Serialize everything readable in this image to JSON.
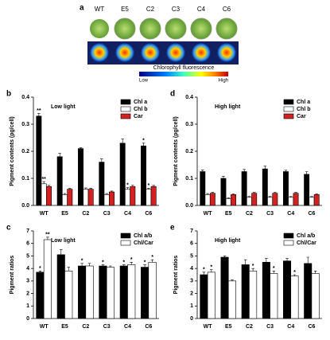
{
  "panel_a": {
    "panel_label": "a",
    "samples": [
      "WT",
      "E5",
      "C2",
      "C3",
      "C4",
      "C6"
    ],
    "colorbar_title": "Chlorophyll fluorescence",
    "colorbar_low": "Low",
    "colorbar_high": "High"
  },
  "chart_data": [
    {
      "type": "bar",
      "panel_label": "b",
      "title": "Low light",
      "y_label": "Pigment contents (pg/cell)",
      "legend": "upper right",
      "categories": [
        "WT",
        "E5",
        "C2",
        "C3",
        "C4",
        "C6"
      ],
      "series": [
        {
          "name": "Chl a",
          "color": "#000000",
          "values": [
            0.33,
            0.18,
            0.21,
            0.16,
            0.23,
            0.22
          ],
          "errors": [
            0.01,
            0.012,
            0.003,
            0.012,
            0.015,
            0.01
          ],
          "stars": [
            "**",
            null,
            null,
            null,
            null,
            "*"
          ]
        },
        {
          "name": "Chl b",
          "color": "#ffffff",
          "values": [
            0.08,
            0.04,
            0.06,
            0.04,
            0.06,
            0.06
          ],
          "errors": [
            0.008,
            0.004,
            0.005,
            0.004,
            0.006,
            0.004
          ],
          "stars": [
            "**",
            null,
            null,
            null,
            "*",
            "*"
          ]
        },
        {
          "name": "Car",
          "color": "#d42020",
          "values": [
            0.07,
            0.06,
            0.06,
            0.05,
            0.07,
            0.07
          ],
          "errors": [
            0.004,
            0.003,
            0.003,
            0.003,
            0.005,
            0.004
          ],
          "stars": [
            null,
            null,
            null,
            null,
            null,
            null
          ]
        }
      ],
      "ylim": [
        0,
        0.4
      ],
      "yticks": [
        {
          "value": 0,
          "label": "0.0"
        },
        0.1,
        0.2,
        0.3,
        0.4
      ]
    },
    {
      "type": "bar",
      "panel_label": "d",
      "title": "High light",
      "y_label": "Pigment contents (pg/cell)",
      "legend": "upper right",
      "categories": [
        "WT",
        "E5",
        "C2",
        "C3",
        "C4",
        "C6"
      ],
      "series": [
        {
          "name": "Chl a",
          "color": "#000000",
          "values": [
            0.125,
            0.1,
            0.125,
            0.135,
            0.125,
            0.115
          ],
          "errors": [
            0.006,
            0.008,
            0.008,
            0.01,
            0.005,
            0.01
          ],
          "stars": [
            null,
            null,
            null,
            null,
            null,
            null
          ]
        },
        {
          "name": "Chl b",
          "color": "#ffffff",
          "values": [
            0.04,
            0.025,
            0.03,
            0.03,
            0.03,
            0.03
          ],
          "errors": [
            0.004,
            0.003,
            0.003,
            0.003,
            0.003,
            0.003
          ],
          "stars": [
            null,
            null,
            null,
            null,
            null,
            null
          ]
        },
        {
          "name": "Car",
          "color": "#d42020",
          "values": [
            0.045,
            0.04,
            0.045,
            0.045,
            0.045,
            0.04
          ],
          "errors": [
            0.003,
            0.003,
            0.003,
            0.003,
            0.003,
            0.003
          ],
          "stars": [
            null,
            null,
            null,
            null,
            null,
            null
          ]
        }
      ],
      "ylim": [
        0,
        0.4
      ],
      "yticks": [
        {
          "value": 0,
          "label": "0.0"
        },
        0.1,
        0.2,
        0.3,
        0.4
      ]
    },
    {
      "type": "bar",
      "panel_label": "c",
      "title": "Low light",
      "y_label": "Pigment ratios",
      "legend": "upper right",
      "categories": [
        "WT",
        "E5",
        "C2",
        "C3",
        "C4",
        "C6"
      ],
      "series": [
        {
          "name": "Chl a/b",
          "color": "#000000",
          "values": [
            3.7,
            5.1,
            4.2,
            4.2,
            4.2,
            4.1
          ],
          "errors": [
            0.1,
            0.4,
            0.2,
            0.1,
            0.1,
            0.2
          ],
          "stars": [
            "*",
            null,
            "*",
            "*",
            "*",
            "*"
          ]
        },
        {
          "name": "Chl/Car",
          "color": "#ffffff",
          "values": [
            6.3,
            3.8,
            4.2,
            4.1,
            4.3,
            4.5
          ],
          "errors": [
            0.2,
            0.3,
            0.2,
            0.1,
            0.2,
            0.2
          ],
          "stars": [
            "**",
            null,
            null,
            null,
            "*",
            "*"
          ]
        }
      ],
      "ylim": [
        0,
        7
      ],
      "yticks": [
        0,
        1,
        2,
        3,
        4,
        5,
        6,
        7
      ]
    },
    {
      "type": "bar",
      "panel_label": "e",
      "title": "High light",
      "y_label": "Pigment ratios",
      "legend": "upper right",
      "categories": [
        "WT",
        "E5",
        "C2",
        "C3",
        "C4",
        "C6"
      ],
      "series": [
        {
          "name": "Chl a/b",
          "color": "#000000",
          "values": [
            3.5,
            4.9,
            4.3,
            4.5,
            4.6,
            4.4
          ],
          "errors": [
            0.2,
            0.1,
            0.4,
            0.3,
            0.2,
            0.5
          ],
          "stars": [
            "*",
            null,
            null,
            null,
            null,
            null
          ]
        },
        {
          "name": "Chl/Car",
          "color": "#ffffff",
          "values": [
            3.7,
            3.0,
            3.8,
            3.6,
            3.4,
            3.6
          ],
          "errors": [
            0.2,
            0.1,
            0.2,
            0.2,
            0.1,
            0.2
          ],
          "stars": [
            "*",
            null,
            "*",
            "*",
            "*",
            null
          ]
        }
      ],
      "ylim": [
        0,
        7
      ],
      "yticks": [
        0,
        1,
        2,
        3,
        4,
        5,
        6,
        7
      ]
    }
  ]
}
